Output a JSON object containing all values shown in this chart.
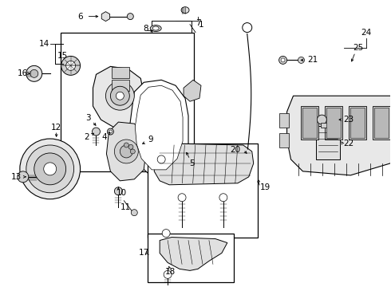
{
  "background": "#ffffff",
  "fig_width": 4.9,
  "fig_height": 3.6,
  "dpi": 100
}
